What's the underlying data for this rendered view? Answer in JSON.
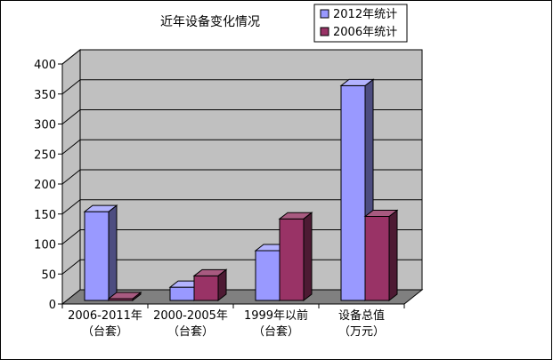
{
  "chart_data": {
    "type": "bar",
    "title": "近年设备变化情况",
    "xlabel": "",
    "ylabel": "",
    "categories": [
      [
        "2006-2011年",
        "（台套）"
      ],
      [
        "2000-2005年",
        "（台套）"
      ],
      [
        "1999年以前",
        "（台套）"
      ],
      [
        "设备总值",
        "（万元）"
      ]
    ],
    "series": [
      {
        "name": "2012年统计",
        "values": [
          148,
          22,
          83,
          358
        ],
        "color": "#9999ff",
        "side_color": "#4d4d80",
        "top_color": "#b3b3ff"
      },
      {
        "name": "2006年统计",
        "values": [
          3,
          41,
          136,
          140
        ],
        "color": "#993366",
        "side_color": "#4d1a33",
        "top_color": "#a85a80"
      }
    ],
    "ylim": [
      0,
      400
    ],
    "yticks": [
      0,
      50,
      100,
      150,
      200,
      250,
      300,
      350,
      400
    ],
    "grid": true,
    "legend": "top-right",
    "wall_color": "#c0c0c0",
    "floor_color": "#808080"
  }
}
